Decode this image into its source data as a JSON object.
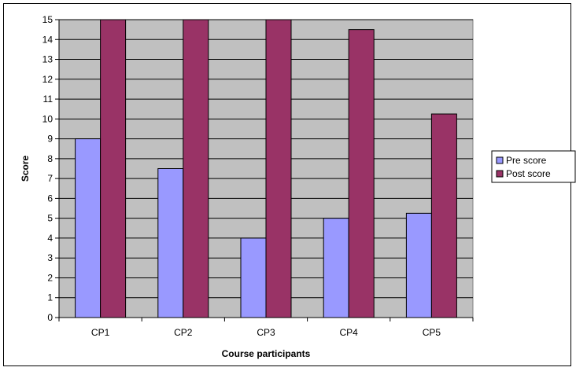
{
  "chart_data": {
    "type": "bar",
    "title": "",
    "xlabel": "Course participants",
    "ylabel": "Score",
    "categories": [
      "CP1",
      "CP2",
      "CP3",
      "CP4",
      "CP5"
    ],
    "series": [
      {
        "name": "Pre score",
        "color": "#9999ff",
        "values": [
          9,
          7.5,
          4,
          5,
          5.25
        ]
      },
      {
        "name": "Post score",
        "color": "#993366",
        "values": [
          15,
          15,
          15,
          14.5,
          10.25
        ]
      }
    ],
    "ylim": [
      0,
      15
    ],
    "yticks": [
      0,
      1,
      2,
      3,
      4,
      5,
      6,
      7,
      8,
      9,
      10,
      11,
      12,
      13,
      14,
      15
    ],
    "grid": true,
    "plot_background": "#c0c0c0",
    "legend": "right"
  }
}
